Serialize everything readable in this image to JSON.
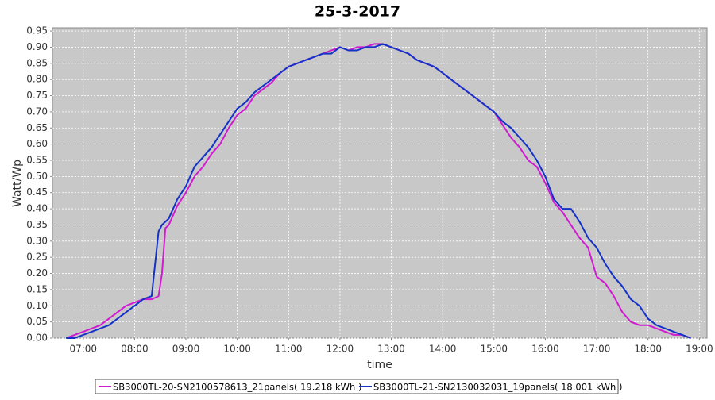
{
  "chart_data": {
    "type": "line",
    "title": "25-3-2017",
    "x_label": "time",
    "y_label": "Watt/Wp",
    "x": [
      "06:40",
      "06:50",
      "07:00",
      "07:10",
      "07:20",
      "07:30",
      "07:40",
      "07:50",
      "08:00",
      "08:10",
      "08:20",
      "08:28",
      "08:32",
      "08:36",
      "08:40",
      "08:50",
      "09:00",
      "09:10",
      "09:20",
      "09:30",
      "09:40",
      "09:50",
      "10:00",
      "10:10",
      "10:20",
      "10:30",
      "10:40",
      "10:50",
      "11:00",
      "11:10",
      "11:20",
      "11:30",
      "11:40",
      "11:50",
      "12:00",
      "12:10",
      "12:20",
      "12:30",
      "12:40",
      "12:50",
      "13:00",
      "13:10",
      "13:20",
      "13:30",
      "13:40",
      "13:50",
      "14:00",
      "14:10",
      "14:20",
      "14:30",
      "14:40",
      "14:50",
      "15:00",
      "15:10",
      "15:20",
      "15:30",
      "15:40",
      "15:50",
      "16:00",
      "16:10",
      "16:20",
      "16:30",
      "16:40",
      "16:50",
      "17:00",
      "17:10",
      "17:20",
      "17:30",
      "17:40",
      "17:50",
      "18:00",
      "18:10",
      "18:20",
      "18:30",
      "18:40",
      "18:50"
    ],
    "series": [
      {
        "name": "SB3000TL-20-SN2100578613_21panels( 19.218 kWh )",
        "color": "#d21ad2",
        "values": [
          0.0,
          0.01,
          0.02,
          0.03,
          0.04,
          0.06,
          0.08,
          0.1,
          0.11,
          0.12,
          0.12,
          0.13,
          0.2,
          0.34,
          0.35,
          0.41,
          0.45,
          0.5,
          0.53,
          0.57,
          0.6,
          0.65,
          0.69,
          0.71,
          0.75,
          0.77,
          0.79,
          0.82,
          0.84,
          0.85,
          0.86,
          0.87,
          0.88,
          0.89,
          0.9,
          0.89,
          0.9,
          0.9,
          0.91,
          0.91,
          0.9,
          0.89,
          0.88,
          0.86,
          0.85,
          0.84,
          0.82,
          0.8,
          0.78,
          0.76,
          0.74,
          0.72,
          0.7,
          0.66,
          0.62,
          0.59,
          0.55,
          0.53,
          0.48,
          0.42,
          0.39,
          0.35,
          0.31,
          0.28,
          0.19,
          0.17,
          0.13,
          0.08,
          0.05,
          0.04,
          0.04,
          0.03,
          0.02,
          0.01,
          0.01,
          0.0
        ]
      },
      {
        "name": "SB3000TL-21-SN2130032031_19panels( 18.001 kWh )",
        "color": "#1432c8",
        "values": [
          0.0,
          0.0,
          0.01,
          0.02,
          0.03,
          0.04,
          0.06,
          0.08,
          0.1,
          0.12,
          0.13,
          0.33,
          0.35,
          0.36,
          0.37,
          0.43,
          0.47,
          0.53,
          0.56,
          0.59,
          0.63,
          0.67,
          0.71,
          0.73,
          0.76,
          0.78,
          0.8,
          0.82,
          0.84,
          0.85,
          0.86,
          0.87,
          0.88,
          0.88,
          0.9,
          0.89,
          0.89,
          0.9,
          0.9,
          0.91,
          0.9,
          0.89,
          0.88,
          0.86,
          0.85,
          0.84,
          0.82,
          0.8,
          0.78,
          0.76,
          0.74,
          0.72,
          0.7,
          0.67,
          0.65,
          0.62,
          0.59,
          0.55,
          0.5,
          0.43,
          0.4,
          0.4,
          0.36,
          0.31,
          0.28,
          0.23,
          0.19,
          0.16,
          0.12,
          0.1,
          0.06,
          0.04,
          0.03,
          0.02,
          0.01,
          0.0
        ]
      }
    ],
    "xlim": [
      "06:24",
      "19:09"
    ],
    "xticks": [
      "07:00",
      "08:00",
      "09:00",
      "10:00",
      "11:00",
      "12:00",
      "13:00",
      "14:00",
      "15:00",
      "16:00",
      "17:00",
      "18:00",
      "19:00"
    ],
    "ylim": [
      0,
      0.96
    ],
    "yticks": [
      {
        "value": 0,
        "label": "0.00"
      },
      0.05,
      {
        "value": 0.1,
        "label": "0.10"
      },
      0.15,
      {
        "value": 0.2,
        "label": "0.20"
      },
      0.25,
      {
        "value": 0.3,
        "label": "0.30"
      },
      0.35,
      {
        "value": 0.4,
        "label": "0.40"
      },
      0.45,
      {
        "value": 0.5,
        "label": "0.50"
      },
      0.55,
      {
        "value": 0.6,
        "label": "0.60"
      },
      0.65,
      {
        "value": 0.7,
        "label": "0.70"
      },
      0.75,
      {
        "value": 0.8,
        "label": "0.80"
      },
      0.85,
      {
        "value": 0.9,
        "label": "0.90"
      },
      0.95
    ],
    "grid": true,
    "legend": "bottom"
  }
}
